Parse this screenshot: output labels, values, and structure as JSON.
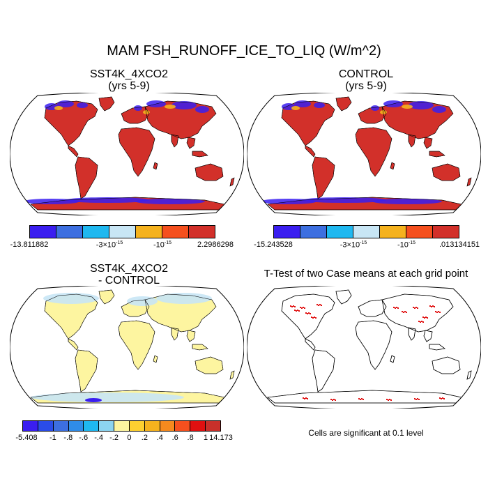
{
  "title": "MAM FSH_RUNOFF_ICE_TO_LIQ (W/m^2)",
  "panels": {
    "top_left": {
      "title_line1": "SST4K_4XCO2",
      "title_line2": "(yrs 5-9)"
    },
    "top_right": {
      "title_line1": "CONTROL",
      "title_line2": "(yrs 5-9)"
    },
    "bottom_left": {
      "title_line1": "SST4K_4XCO2",
      "title_line2": "- CONTROL"
    },
    "bottom_right": {
      "title_line1": "T-Test of two Case means at each grid point"
    }
  },
  "colorbars": {
    "case": {
      "colors": [
        "#3a1ef0",
        "#3d6fe0",
        "#1fb8f0",
        "#c8e6f5",
        "#f5b21e",
        "#f5501e",
        "#d2302a"
      ]
    },
    "cb1": {
      "labels": [
        "-13.811882",
        "-3×10",
        "-15",
        "-10",
        "-15",
        "2.2986298"
      ]
    },
    "cb2": {
      "labels": [
        "-15.243528",
        "-3×10",
        "-15",
        "-10",
        "-15",
        ".013134151"
      ]
    },
    "diff": {
      "colors": [
        "#3a1ef0",
        "#2a4ce8",
        "#3d6fe0",
        "#2f8ce8",
        "#1fb8f0",
        "#8cd4f0",
        "#fdf5a0",
        "#fdd030",
        "#f5b21e",
        "#f58a1e",
        "#f5501e",
        "#e01010",
        "#c8302a"
      ],
      "labels": [
        "-5.408",
        "-1",
        "-.8",
        "-.6",
        "-.4",
        "-.2",
        "0",
        ".2",
        ".4",
        ".6",
        ".8",
        "1",
        "14.173"
      ]
    }
  },
  "significance_note": "Cells are significant at 0.1 level",
  "map_colors": {
    "land_case": "#d2302a",
    "land_diff": "#fdf5a0",
    "cold_case": "#3a1ef0",
    "high_lat_diff": "#c8e6f5",
    "significant": "#e01010",
    "ocean": "#ffffff",
    "outline": "#000000"
  }
}
